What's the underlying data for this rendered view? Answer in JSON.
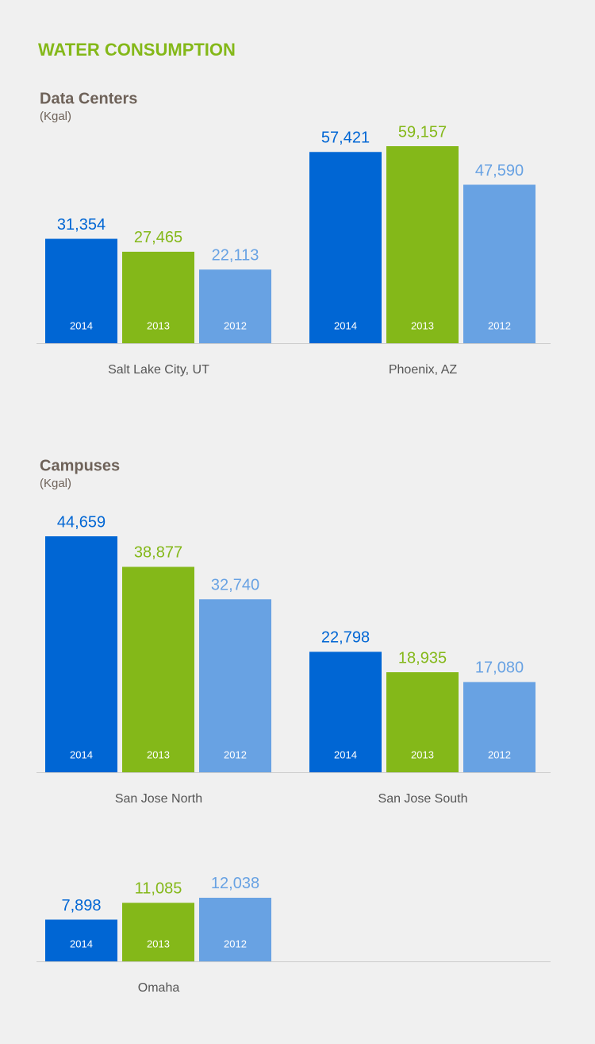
{
  "title": "WATER CONSUMPTION",
  "chart_data": [
    {
      "type": "bar",
      "title": "Data Centers",
      "subtitle": "(Kgal)",
      "categories": [
        "Salt Lake City, UT",
        "Phoenix, AZ"
      ],
      "series": [
        {
          "name": "2014",
          "color": "#0066d4",
          "values": [
            31354,
            57421
          ],
          "value_labels": [
            "31,354",
            "57,421"
          ]
        },
        {
          "name": "2013",
          "color": "#84b819",
          "values": [
            27465,
            59157
          ],
          "value_labels": [
            "27,465",
            "59,157"
          ]
        },
        {
          "name": "2012",
          "color": "#68a2e3",
          "values": [
            22113,
            47590
          ],
          "value_labels": [
            "22,113",
            "47,590"
          ]
        }
      ]
    },
    {
      "type": "bar",
      "title": "Campuses",
      "subtitle": "(Kgal)",
      "categories": [
        "San Jose North",
        "San Jose South",
        "Omaha"
      ],
      "series": [
        {
          "name": "2014",
          "color": "#0066d4",
          "values": [
            44659,
            22798,
            7898
          ],
          "value_labels": [
            "44,659",
            "22,798",
            "7,898"
          ]
        },
        {
          "name": "2013",
          "color": "#84b819",
          "values": [
            38877,
            18935,
            11085
          ],
          "value_labels": [
            "38,877",
            "18,935",
            "11,085"
          ]
        },
        {
          "name": "2012",
          "color": "#68a2e3",
          "values": [
            32740,
            17080,
            12038
          ],
          "value_labels": [
            "32,740",
            "17,080",
            "12,038"
          ]
        }
      ]
    }
  ]
}
